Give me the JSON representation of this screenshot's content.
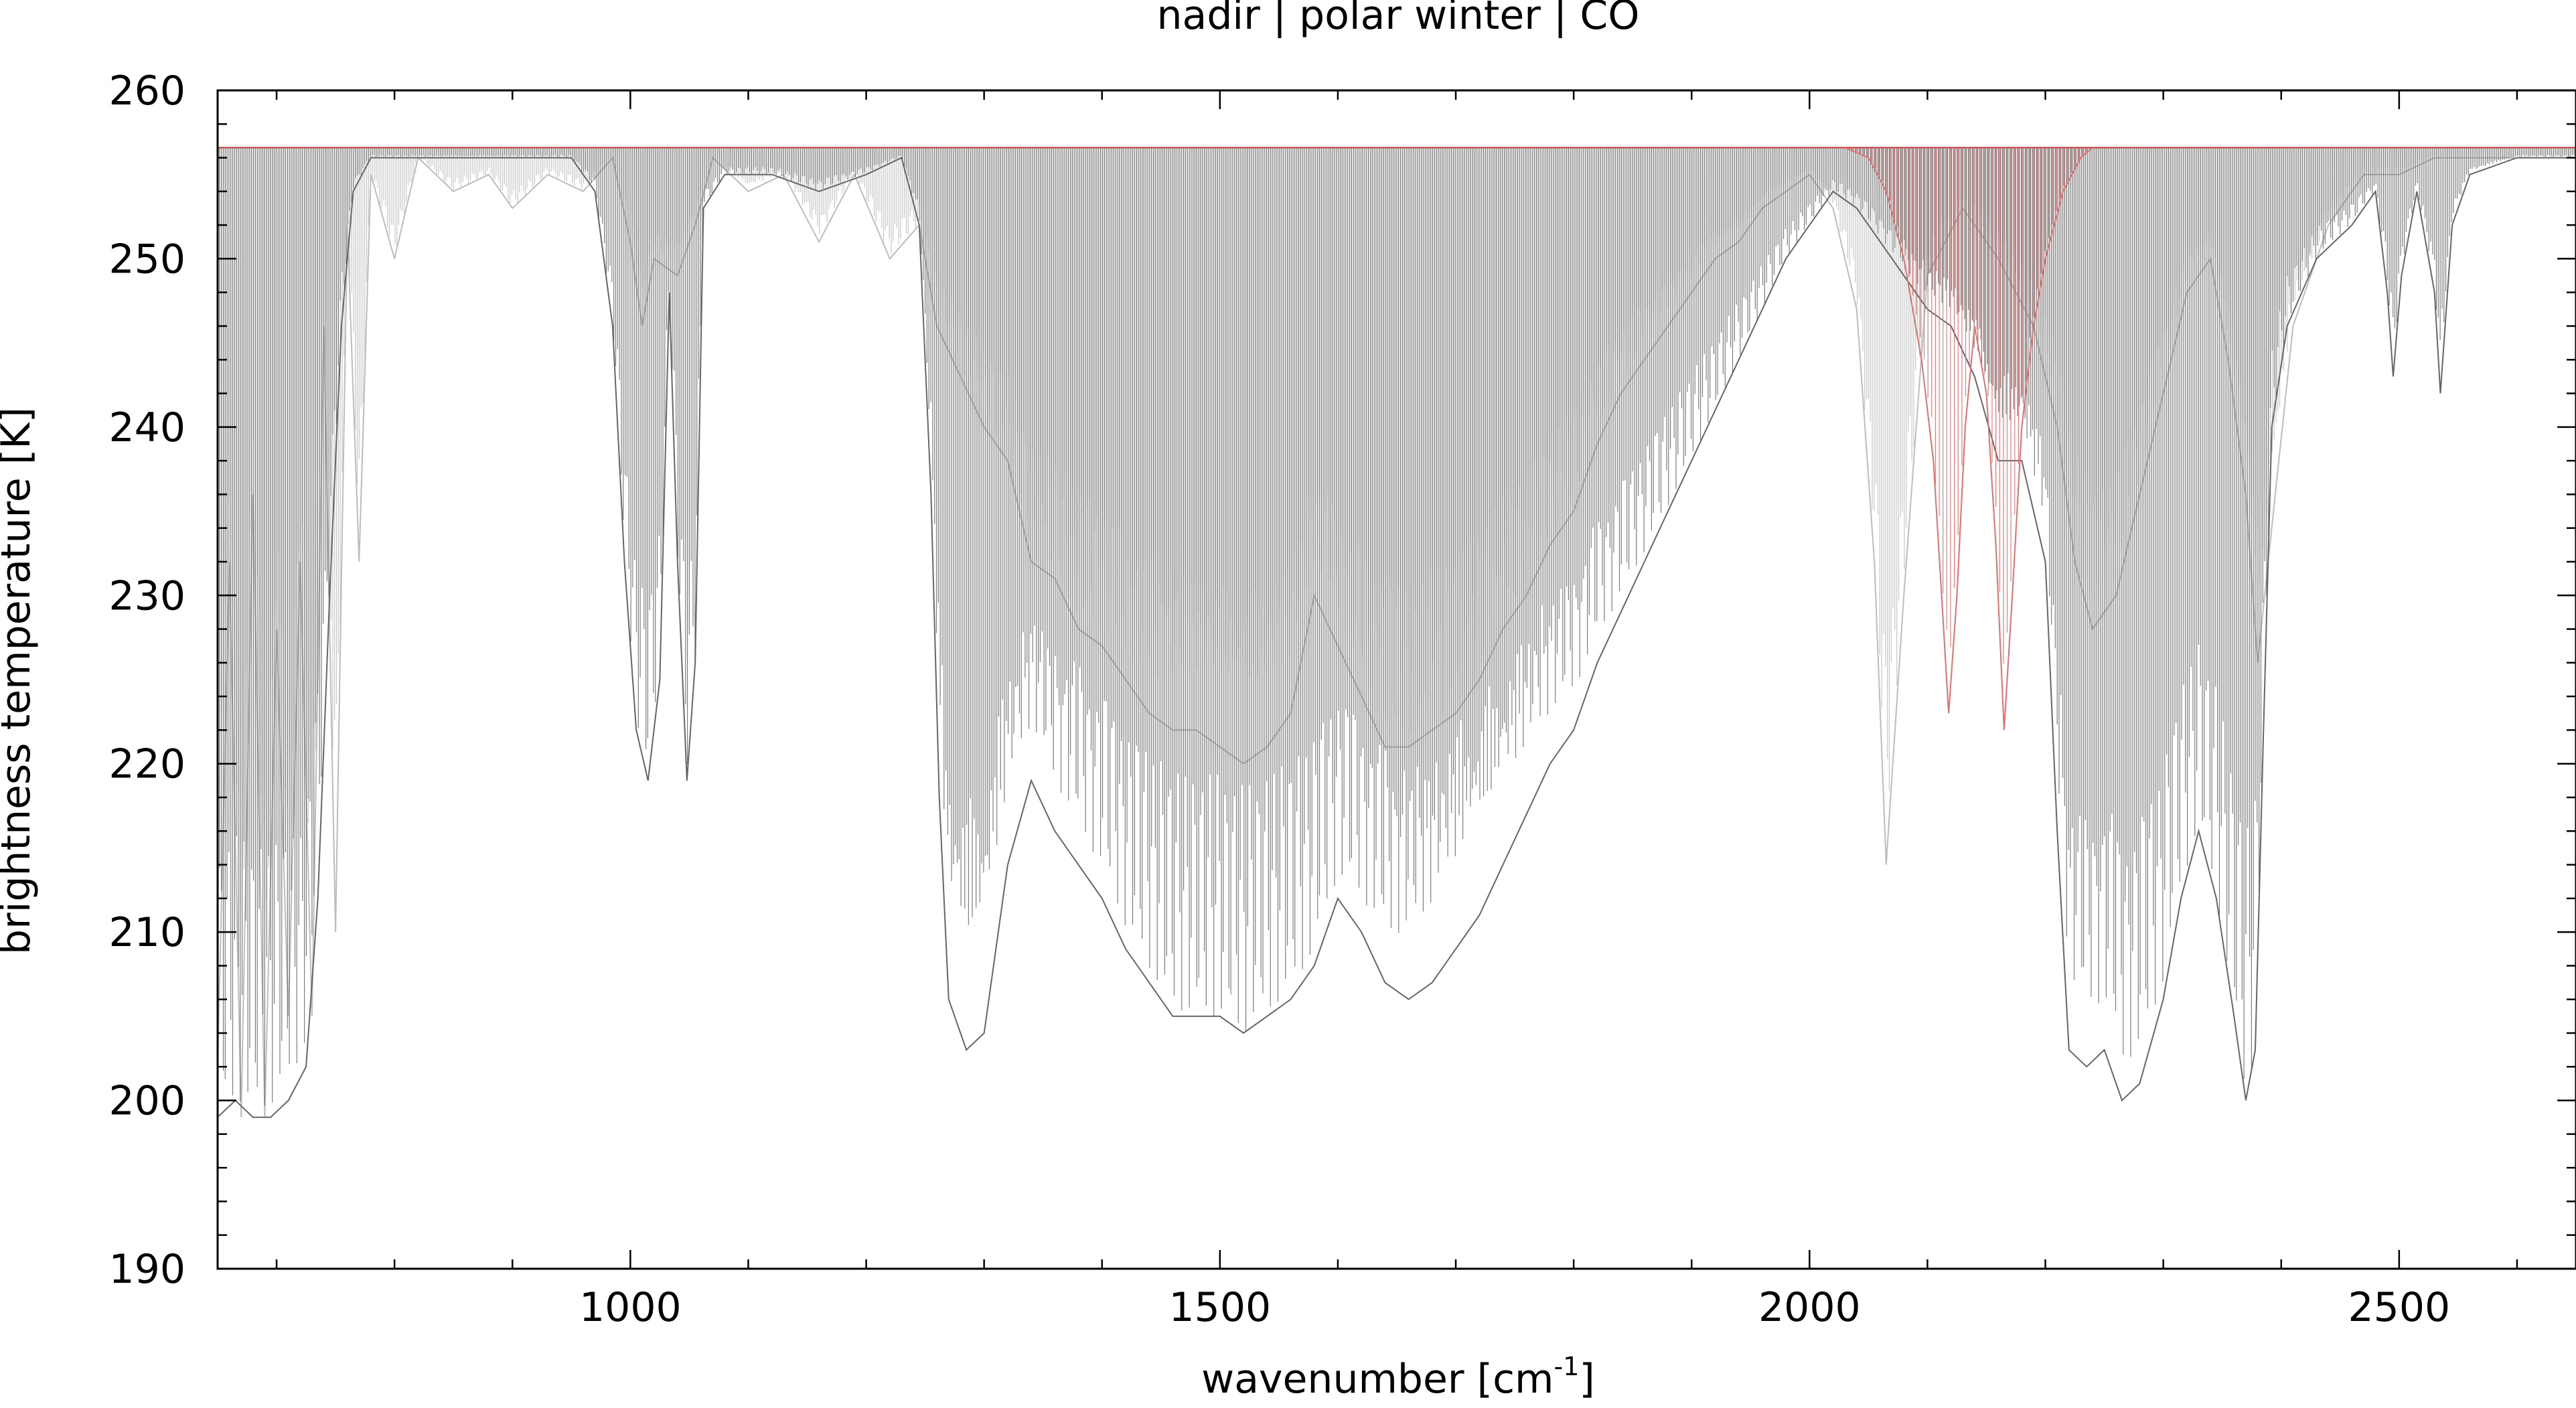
{
  "chart_data": {
    "type": "line",
    "title": "nadir | polar winter | CO",
    "xlabel": "wavenumber [cm",
    "xlabel_sup": "-1",
    "xlabel_suffix": "]",
    "ylabel": "brightness temperature [K]",
    "xlim": [
      650,
      2650
    ],
    "ylim": [
      190,
      260
    ],
    "x_ticks": [
      1000,
      1500,
      2000,
      2500
    ],
    "x_tick_labels": [
      "1000",
      "1500",
      "2000",
      "2500"
    ],
    "x_minor_step": 100,
    "y_ticks": [
      190,
      200,
      210,
      220,
      230,
      240,
      250,
      260
    ],
    "y_tick_labels": [
      "190",
      "200",
      "210",
      "220",
      "230",
      "240",
      "250",
      "260"
    ],
    "y_minor_step": 2,
    "grid": false,
    "legend": "none",
    "reference_level": 256.6,
    "series": [
      {
        "color": "#bdbdbd",
        "points": [
          [
            650,
            202
          ],
          [
            660,
            232
          ],
          [
            670,
            199
          ],
          [
            680,
            236
          ],
          [
            690,
            199
          ],
          [
            700,
            228
          ],
          [
            710,
            205
          ],
          [
            720,
            232
          ],
          [
            730,
            205
          ],
          [
            740,
            246
          ],
          [
            750,
            210
          ],
          [
            760,
            252
          ],
          [
            770,
            232
          ],
          [
            780,
            255
          ],
          [
            800,
            250
          ],
          [
            820,
            256
          ],
          [
            850,
            254
          ],
          [
            880,
            255
          ],
          [
            900,
            253
          ],
          [
            930,
            255
          ],
          [
            960,
            254
          ],
          [
            985,
            256
          ],
          [
            1000,
            251
          ],
          [
            1010,
            246
          ],
          [
            1020,
            250
          ],
          [
            1040,
            249
          ],
          [
            1055,
            252
          ],
          [
            1070,
            256
          ],
          [
            1100,
            254
          ],
          [
            1130,
            255
          ],
          [
            1160,
            251
          ],
          [
            1190,
            255
          ],
          [
            1220,
            250
          ],
          [
            1245,
            252
          ],
          [
            1260,
            246
          ],
          [
            1280,
            243
          ],
          [
            1300,
            240
          ],
          [
            1320,
            238
          ],
          [
            1340,
            232
          ],
          [
            1360,
            231
          ],
          [
            1380,
            228
          ],
          [
            1400,
            227
          ],
          [
            1420,
            225
          ],
          [
            1440,
            223
          ],
          [
            1460,
            222
          ],
          [
            1480,
            222
          ],
          [
            1500,
            221
          ],
          [
            1520,
            220
          ],
          [
            1540,
            221
          ],
          [
            1560,
            223
          ],
          [
            1580,
            230
          ],
          [
            1600,
            227
          ],
          [
            1620,
            224
          ],
          [
            1640,
            221
          ],
          [
            1660,
            221
          ],
          [
            1680,
            222
          ],
          [
            1700,
            223
          ],
          [
            1720,
            225
          ],
          [
            1740,
            228
          ],
          [
            1760,
            230
          ],
          [
            1780,
            233
          ],
          [
            1800,
            235
          ],
          [
            1820,
            239
          ],
          [
            1840,
            242
          ],
          [
            1860,
            244
          ],
          [
            1880,
            246
          ],
          [
            1900,
            248
          ],
          [
            1920,
            250
          ],
          [
            1940,
            251
          ],
          [
            1960,
            253
          ],
          [
            1980,
            254
          ],
          [
            2000,
            255
          ],
          [
            2020,
            253
          ],
          [
            2040,
            247
          ],
          [
            2055,
            232
          ],
          [
            2065,
            214
          ],
          [
            2080,
            230
          ],
          [
            2100,
            249
          ],
          [
            2130,
            253
          ],
          [
            2160,
            250
          ],
          [
            2190,
            246
          ],
          [
            2210,
            240
          ],
          [
            2225,
            232
          ],
          [
            2240,
            228
          ],
          [
            2260,
            230
          ],
          [
            2280,
            236
          ],
          [
            2300,
            242
          ],
          [
            2320,
            248
          ],
          [
            2340,
            250
          ],
          [
            2355,
            244
          ],
          [
            2370,
            236
          ],
          [
            2380,
            226
          ],
          [
            2395,
            236
          ],
          [
            2410,
            246
          ],
          [
            2440,
            252
          ],
          [
            2470,
            255
          ],
          [
            2500,
            255
          ],
          [
            2530,
            256
          ],
          [
            2560,
            256
          ],
          [
            2600,
            256
          ],
          [
            2650,
            256
          ]
        ]
      },
      {
        "color": "#666666",
        "points": [
          [
            650,
            199
          ],
          [
            665,
            200
          ],
          [
            680,
            199
          ],
          [
            695,
            199
          ],
          [
            710,
            200
          ],
          [
            725,
            202
          ],
          [
            735,
            212
          ],
          [
            745,
            230
          ],
          [
            755,
            246
          ],
          [
            765,
            254
          ],
          [
            780,
            256
          ],
          [
            820,
            256
          ],
          [
            870,
            256
          ],
          [
            920,
            256
          ],
          [
            950,
            256
          ],
          [
            970,
            254
          ],
          [
            985,
            246
          ],
          [
            995,
            232
          ],
          [
            1005,
            222
          ],
          [
            1015,
            219
          ],
          [
            1025,
            225
          ],
          [
            1033,
            248
          ],
          [
            1040,
            232
          ],
          [
            1048,
            219
          ],
          [
            1055,
            226
          ],
          [
            1062,
            253
          ],
          [
            1080,
            255
          ],
          [
            1120,
            255
          ],
          [
            1160,
            254
          ],
          [
            1200,
            255
          ],
          [
            1230,
            256
          ],
          [
            1245,
            252
          ],
          [
            1255,
            236
          ],
          [
            1262,
            218
          ],
          [
            1270,
            206
          ],
          [
            1285,
            203
          ],
          [
            1300,
            204
          ],
          [
            1320,
            214
          ],
          [
            1340,
            219
          ],
          [
            1360,
            216
          ],
          [
            1380,
            214
          ],
          [
            1400,
            212
          ],
          [
            1420,
            209
          ],
          [
            1440,
            207
          ],
          [
            1460,
            205
          ],
          [
            1480,
            205
          ],
          [
            1500,
            205
          ],
          [
            1520,
            204
          ],
          [
            1540,
            205
          ],
          [
            1560,
            206
          ],
          [
            1580,
            208
          ],
          [
            1600,
            212
          ],
          [
            1620,
            210
          ],
          [
            1640,
            207
          ],
          [
            1660,
            206
          ],
          [
            1680,
            207
          ],
          [
            1700,
            209
          ],
          [
            1720,
            211
          ],
          [
            1740,
            214
          ],
          [
            1760,
            217
          ],
          [
            1780,
            220
          ],
          [
            1800,
            222
          ],
          [
            1820,
            226
          ],
          [
            1840,
            229
          ],
          [
            1860,
            232
          ],
          [
            1880,
            235
          ],
          [
            1900,
            238
          ],
          [
            1920,
            241
          ],
          [
            1940,
            244
          ],
          [
            1960,
            247
          ],
          [
            1980,
            250
          ],
          [
            2000,
            252
          ],
          [
            2020,
            254
          ],
          [
            2040,
            253
          ],
          [
            2060,
            251
          ],
          [
            2080,
            249
          ],
          [
            2100,
            247
          ],
          [
            2120,
            246
          ],
          [
            2140,
            243
          ],
          [
            2160,
            238
          ],
          [
            2180,
            238
          ],
          [
            2200,
            232
          ],
          [
            2210,
            216
          ],
          [
            2220,
            203
          ],
          [
            2235,
            202
          ],
          [
            2250,
            203
          ],
          [
            2265,
            200
          ],
          [
            2280,
            201
          ],
          [
            2300,
            206
          ],
          [
            2315,
            212
          ],
          [
            2330,
            216
          ],
          [
            2345,
            212
          ],
          [
            2360,
            205
          ],
          [
            2370,
            200
          ],
          [
            2378,
            203
          ],
          [
            2385,
            222
          ],
          [
            2392,
            240
          ],
          [
            2405,
            246
          ],
          [
            2430,
            250
          ],
          [
            2460,
            252
          ],
          [
            2480,
            254
          ],
          [
            2490,
            248
          ],
          [
            2495,
            243
          ],
          [
            2502,
            249
          ],
          [
            2515,
            254
          ],
          [
            2530,
            248
          ],
          [
            2535,
            242
          ],
          [
            2545,
            252
          ],
          [
            2560,
            255
          ],
          [
            2600,
            256
          ],
          [
            2650,
            256
          ]
        ]
      },
      {
        "color": "#e07070",
        "points": [
          [
            2030,
            256.6
          ],
          [
            2050,
            256
          ],
          [
            2065,
            254
          ],
          [
            2080,
            250
          ],
          [
            2095,
            244
          ],
          [
            2105,
            238
          ],
          [
            2112,
            230
          ],
          [
            2118,
            223
          ],
          [
            2125,
            230
          ],
          [
            2132,
            240
          ],
          [
            2140,
            246
          ],
          [
            2150,
            242
          ],
          [
            2158,
            233
          ],
          [
            2165,
            222
          ],
          [
            2172,
            230
          ],
          [
            2180,
            240
          ],
          [
            2190,
            246
          ],
          [
            2200,
            250
          ],
          [
            2215,
            254
          ],
          [
            2230,
            256
          ],
          [
            2240,
            256.6
          ]
        ]
      }
    ]
  }
}
